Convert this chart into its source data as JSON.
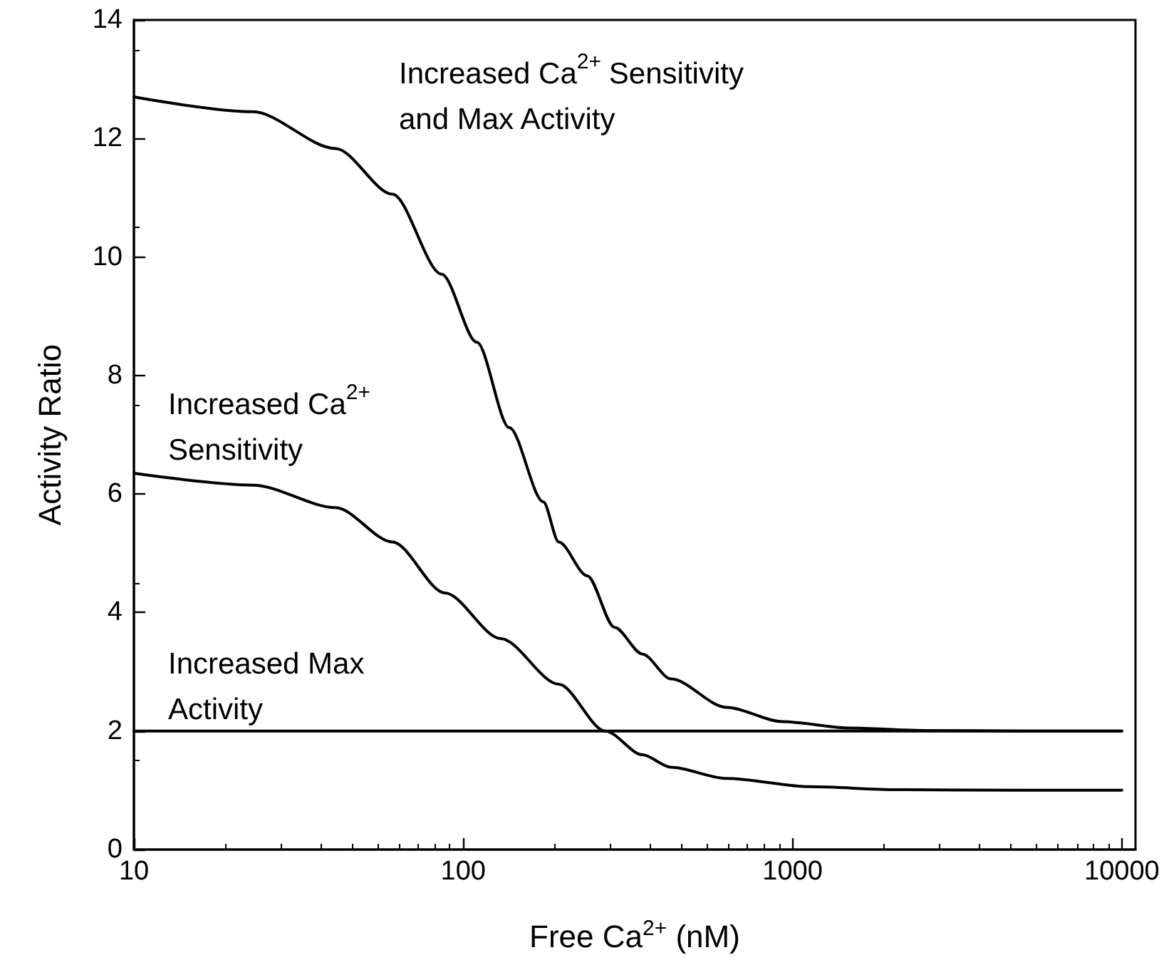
{
  "chart_data": {
    "type": "line",
    "xlabel": "Free Ca$^{2+}$ (nM)",
    "ylabel": "Activity Ratio",
    "log": "x",
    "xlim": [
      10,
      11000
    ],
    "xticks": [
      10,
      100,
      1000,
      10000
    ],
    "ylim": [
      0,
      14
    ],
    "yticks": [
      0,
      2,
      4,
      6,
      8,
      10,
      12,
      14
    ],
    "grid": false,
    "marker": "none",
    "line_style": "solid",
    "series": [
      {
        "name": "Increased Ca$^{2+}$ Sensitivity and Max Activity",
        "color": "#000000",
        "x": [
          10,
          23,
          41,
          61,
          86,
          110,
          138,
          175,
          195,
          238,
          288,
          350,
          427,
          630,
          930,
          1500,
          2500,
          5000,
          10000
        ],
        "values": [
          12.7,
          12.45,
          11.83,
          11.06,
          9.71,
          8.56,
          7.12,
          5.87,
          5.19,
          4.62,
          3.75,
          3.3,
          2.88,
          2.4,
          2.16,
          2.05,
          2.01,
          2.0,
          2.0
        ]
      },
      {
        "name": "Increased Ca$^{2+}$ Sensitivity",
        "color": "#000000",
        "x": [
          10,
          23,
          41,
          61,
          88,
          130,
          195,
          270,
          350,
          427,
          630,
          1130,
          2070,
          5000,
          10000
        ],
        "values": [
          6.35,
          6.15,
          5.77,
          5.19,
          4.33,
          3.56,
          2.79,
          2.0,
          1.6,
          1.39,
          1.2,
          1.06,
          1.01,
          1.0,
          1.0
        ]
      },
      {
        "name": "Increased Max Activity",
        "color": "#000000",
        "x": [
          10,
          10000
        ],
        "values": [
          2,
          2
        ]
      }
    ]
  }
}
